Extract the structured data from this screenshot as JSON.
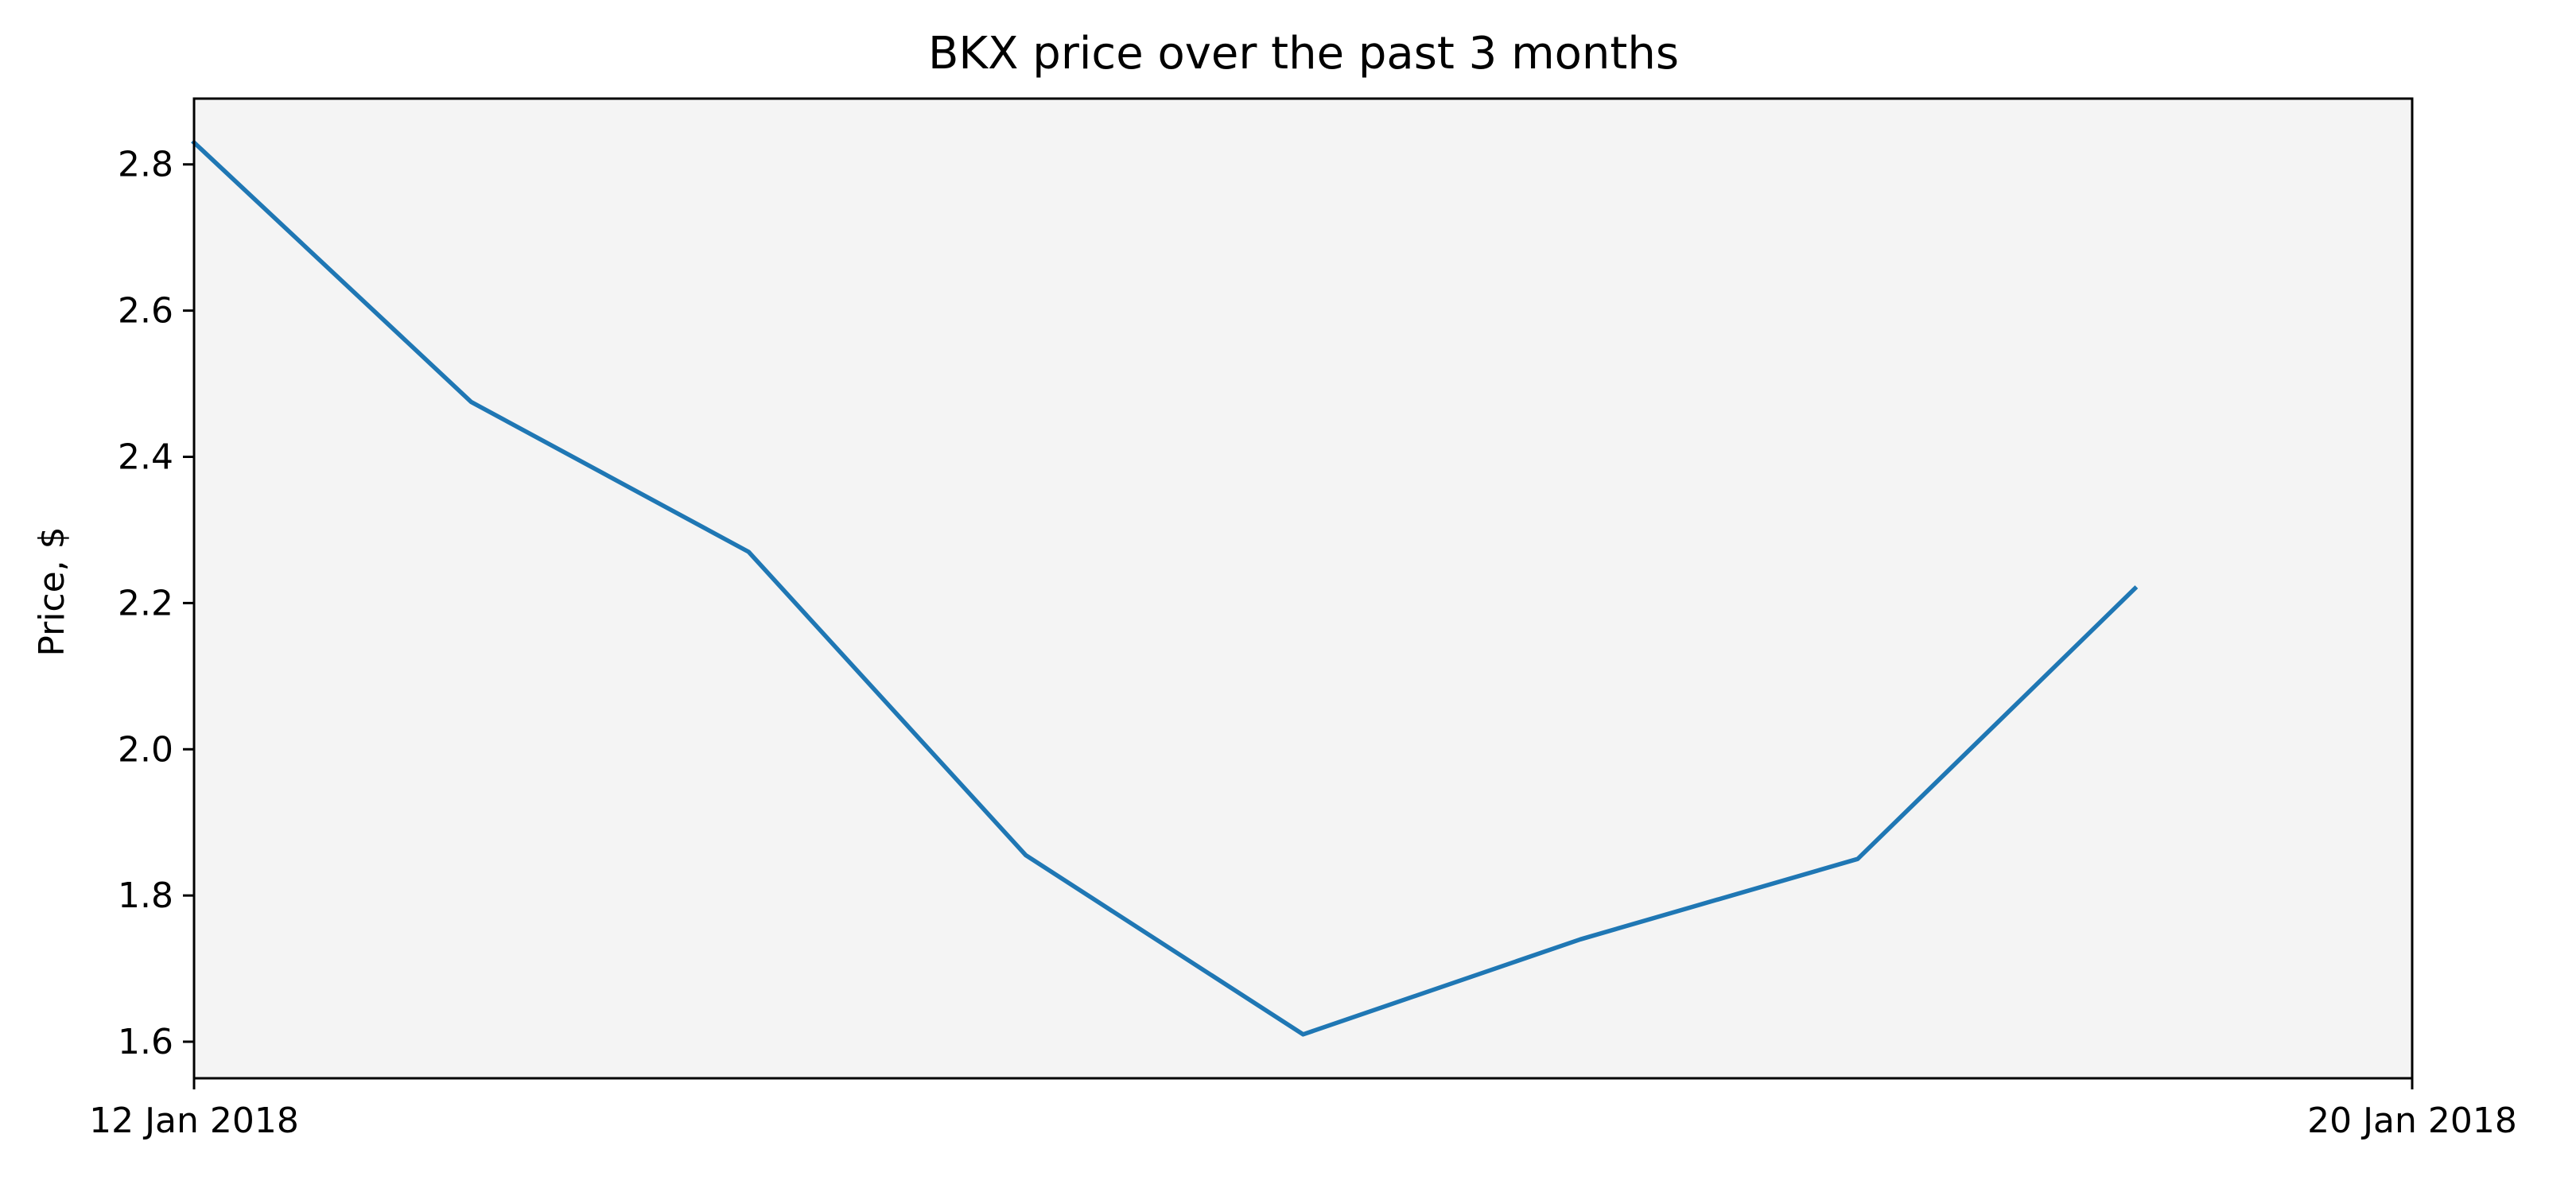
{
  "chart_data": {
    "type": "line",
    "title": "BKX price over the past 3 months",
    "xlabel": "",
    "ylabel": "Price, $",
    "x": [
      "2018-01-12",
      "2018-01-13",
      "2018-01-14",
      "2018-01-15",
      "2018-01-16",
      "2018-01-17",
      "2018-01-18",
      "2018-01-19"
    ],
    "series": [
      {
        "values": [
          2.83,
          2.475,
          2.27,
          1.855,
          1.61,
          1.74,
          1.85,
          2.22
        ]
      }
    ],
    "x_ticks": [
      {
        "date": "2018-01-12",
        "label": "12 Jan 2018"
      },
      {
        "date": "2018-01-20",
        "label": "20 Jan 2018"
      }
    ],
    "y_ticks": [
      1.6,
      1.8,
      2.0,
      2.2,
      2.4,
      2.6,
      2.8
    ],
    "xlim": [
      "2018-01-12",
      "2018-01-20"
    ],
    "ylim": [
      1.55,
      2.89
    ],
    "grid": false,
    "legend": "none",
    "colors": {
      "line": "#1f77b4",
      "plot_background": "#f4f4f4",
      "axes": "#000000"
    }
  }
}
